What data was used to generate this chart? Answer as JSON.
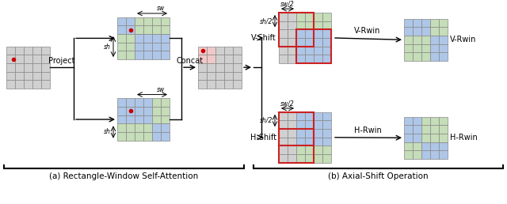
{
  "bg_color": "#ffffff",
  "cell_gray": "#d0d0d0",
  "cell_blue": "#aec6e8",
  "cell_green": "#c5ddb8",
  "cell_pink": "#f0c8c8",
  "cell_border": "#888888",
  "red_dot": "#cc0000",
  "red_rect": "#cc2222",
  "arrow_color": "#111111",
  "title_a": "(a) Rectangle-Window Self-Attention",
  "title_b": "(b) Axial-Shift Operation",
  "label_project": "Project",
  "label_concat": "Concat",
  "label_vshift": "V-Shift",
  "label_hshift": "H-Shift",
  "label_vrwin": "V-Rwin",
  "label_hrwin": "H-Rwin",
  "label_sw": "sw",
  "label_sh": "sh",
  "label_sw2": "sw/2",
  "label_sh2": "sh/2"
}
